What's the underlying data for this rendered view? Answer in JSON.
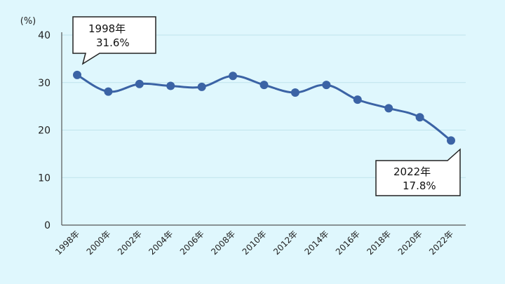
{
  "chart_data": {
    "type": "line",
    "ylabel": "(%)",
    "ylim": [
      0,
      40
    ],
    "yticks": [
      0,
      10,
      20,
      30,
      40
    ],
    "grid": true,
    "categories": [
      "1998年",
      "2000年",
      "2002年",
      "2004年",
      "2006年",
      "2008年",
      "2010年",
      "2012年",
      "2014年",
      "2016年",
      "2018年",
      "2020年",
      "2022年"
    ],
    "series": [
      {
        "values": [
          31.6,
          28.1,
          29.7,
          29.3,
          29.1,
          31.4,
          29.5,
          27.9,
          29.5,
          26.4,
          24.6,
          22.7,
          17.8
        ]
      }
    ],
    "annotations": [
      {
        "line1": "1998年",
        "line2": "31.6%"
      },
      {
        "line1": "2022年",
        "line2": "17.8%"
      }
    ],
    "colors": {
      "line": "#3b63a5",
      "background": "#dff7fd"
    }
  }
}
